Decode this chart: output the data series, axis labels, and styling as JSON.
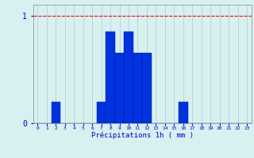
{
  "hours": [
    0,
    1,
    2,
    3,
    4,
    5,
    6,
    7,
    8,
    9,
    10,
    11,
    12,
    13,
    14,
    15,
    16,
    17,
    18,
    19,
    20,
    21,
    22,
    23
  ],
  "values": [
    0,
    0,
    0.2,
    0,
    0,
    0,
    0,
    0.2,
    0.85,
    0.65,
    0.85,
    0.65,
    0.65,
    0,
    0,
    0,
    0.2,
    0,
    0,
    0,
    0,
    0,
    0,
    0
  ],
  "bar_color": "#0033dd",
  "bar_edge_color": "#0011aa",
  "background_color": "#d8f0f0",
  "grid_color": "#b0d4d4",
  "axis_label_color": "#0000cc",
  "tick_color": "#0000cc",
  "xlabel": "Précipitations 1h ( mm )",
  "xlabel_fontsize": 6.5,
  "ylim": [
    0,
    1.1
  ],
  "yticks": [
    0,
    1
  ],
  "ytick_labels": [
    "0",
    "1"
  ],
  "xlim": [
    -0.5,
    23.5
  ],
  "redline_y": 1.0,
  "title": ""
}
